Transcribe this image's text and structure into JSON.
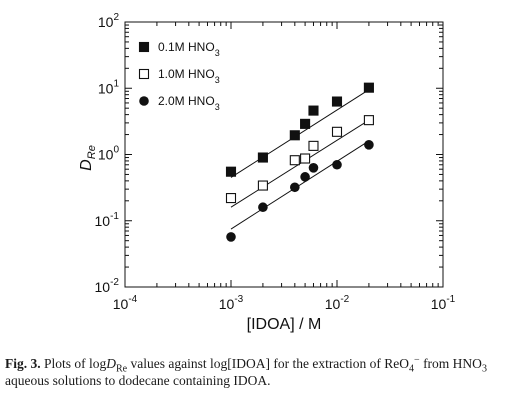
{
  "chart_data": {
    "type": "scatter",
    "x_scale": "log",
    "y_scale": "log",
    "xlim": [
      0.0001,
      0.1
    ],
    "ylim": [
      0.01,
      100
    ],
    "xlabel": "[IDOA] / M",
    "ylabel_main": "D",
    "ylabel_sub": "Re",
    "x_tick_labels": [
      {
        "value": 0.0001,
        "base": "10",
        "exp": "-4"
      },
      {
        "value": 0.001,
        "base": "10",
        "exp": "-3"
      },
      {
        "value": 0.01,
        "base": "10",
        "exp": "-2"
      },
      {
        "value": 0.1,
        "base": "10",
        "exp": "-1"
      }
    ],
    "y_tick_labels": [
      {
        "value": 0.01,
        "base": "10",
        "exp": "-2"
      },
      {
        "value": 0.1,
        "base": "10",
        "exp": "-1"
      },
      {
        "value": 1,
        "base": "10",
        "exp": "0"
      },
      {
        "value": 10,
        "base": "10",
        "exp": "1"
      },
      {
        "value": 100,
        "base": "10",
        "exp": "2"
      }
    ],
    "legend_position": "top-left",
    "series": [
      {
        "name": "0.1M HNO",
        "name_sub": "3",
        "marker": "filled-square",
        "x": [
          0.001,
          0.002,
          0.004,
          0.005,
          0.006,
          0.01,
          0.02
        ],
        "y": [
          0.55,
          0.9,
          1.95,
          2.9,
          4.6,
          6.3,
          10.2
        ],
        "fit_line": {
          "x": [
            0.001,
            0.02
          ],
          "y": [
            0.45,
            9.5
          ]
        }
      },
      {
        "name": "1.0M HNO",
        "name_sub": "3",
        "marker": "open-square",
        "x": [
          0.001,
          0.002,
          0.004,
          0.005,
          0.006,
          0.01,
          0.02
        ],
        "y": [
          0.22,
          0.34,
          0.82,
          0.87,
          1.35,
          2.2,
          3.3
        ],
        "fit_line": {
          "x": [
            0.001,
            0.02
          ],
          "y": [
            0.16,
            3.3
          ]
        }
      },
      {
        "name": "2.0M HNO",
        "name_sub": "3",
        "marker": "filled-circle",
        "x": [
          0.001,
          0.002,
          0.004,
          0.005,
          0.006,
          0.01,
          0.02
        ],
        "y": [
          0.057,
          0.16,
          0.32,
          0.46,
          0.63,
          0.7,
          1.4
        ],
        "fit_line": {
          "x": [
            0.001,
            0.02
          ],
          "y": [
            0.075,
            1.6
          ]
        }
      }
    ]
  },
  "caption": {
    "label": "Fig. 3.",
    "segments": [
      {
        "text": " Plots of log"
      },
      {
        "text": "D",
        "style": "italic"
      },
      {
        "text": "Re",
        "style": "sub"
      },
      {
        "text": " values against log[IDOA] for the extraction of ReO"
      },
      {
        "text": "4",
        "style": "sub"
      },
      {
        "text": "−",
        "style": "sup"
      },
      {
        "text": " from HNO"
      },
      {
        "text": "3",
        "style": "sub"
      },
      {
        "text": " aqueous solutions to dodecane containing IDOA."
      }
    ]
  }
}
